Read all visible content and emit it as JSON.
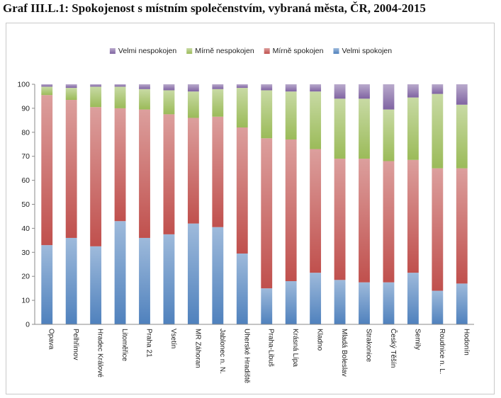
{
  "title": "Graf III.L.1: Spokojenost s místním společenstvím, vybraná města, ČR, 2004-2015",
  "chart_data": {
    "type": "bar",
    "stacked": true,
    "orientation": "vertical",
    "ylim": [
      0,
      100
    ],
    "yticks": [
      0,
      10,
      20,
      30,
      40,
      50,
      60,
      70,
      80,
      90,
      100
    ],
    "grid": false,
    "legend_position": "top",
    "categories": [
      "Opava",
      "Pelhřimov",
      "Hradec Králové",
      "Litoměřice",
      "Praha 21",
      "Vsetín",
      "MR Záhoran",
      "Jablonec n. N.",
      "Uherské Hradiště",
      "Praha-Libuš",
      "Krásná Lípa",
      "Kladno",
      "Mladá Boleslav",
      "Strakonice",
      "Český Těšín",
      "Semily",
      "Roudnice n. L.",
      "Hodonín"
    ],
    "series": [
      {
        "name": "Velmi spokojen",
        "color": "#4f81bd",
        "values": [
          33,
          36,
          32.5,
          43,
          36,
          37.5,
          42,
          40.5,
          29.5,
          15,
          18,
          21.5,
          18.5,
          17.5,
          17.5,
          21.5,
          14,
          17
        ]
      },
      {
        "name": "Mírně spokojen",
        "color": "#c0504d",
        "values": [
          62.5,
          57.5,
          58,
          47,
          53.5,
          50,
          44,
          46,
          52.5,
          62.5,
          59,
          51.5,
          50.5,
          51.5,
          50.5,
          47,
          51,
          48
        ]
      },
      {
        "name": "Mírně nespokojen",
        "color": "#9bbb59",
        "values": [
          3.5,
          5,
          8.5,
          9,
          8.5,
          10,
          11,
          11.5,
          16.5,
          20,
          20,
          24,
          25,
          25,
          21.5,
          26,
          31,
          26.5
        ]
      },
      {
        "name": "Velmi nespokojen",
        "color": "#8064a2",
        "values": [
          1,
          1.5,
          1,
          1,
          2,
          2.5,
          3,
          2,
          1.5,
          2.5,
          3,
          3,
          6,
          6,
          10.5,
          5.5,
          4,
          8.5
        ]
      }
    ]
  }
}
